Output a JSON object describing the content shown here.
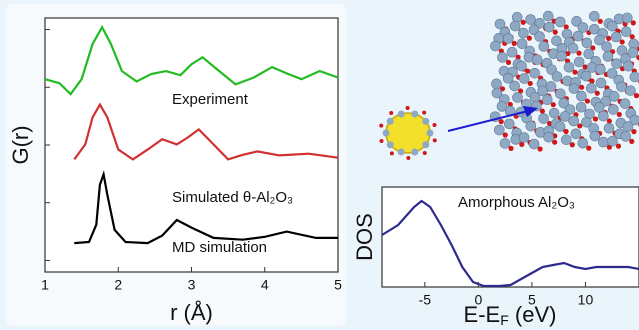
{
  "chart_data": [
    {
      "type": "line",
      "ylabel": "G(r)",
      "xlabel": "r (Å)",
      "xlim": [
        1,
        5
      ],
      "xticks": [
        1,
        2,
        3,
        4,
        5
      ],
      "ylim": [
        -0.2,
        4.2
      ],
      "yticks": [
        0,
        1,
        2,
        3,
        4
      ],
      "ytick_labels": false,
      "series": [
        {
          "name": "Experiment",
          "color": "#22bb22",
          "x": [
            1.0,
            1.2,
            1.35,
            1.5,
            1.65,
            1.78,
            1.9,
            2.05,
            2.25,
            2.45,
            2.65,
            2.85,
            3.0,
            3.15,
            3.35,
            3.6,
            3.85,
            4.1,
            4.3,
            4.5,
            4.75,
            5.0
          ],
          "values": [
            3.14,
            3.07,
            2.88,
            3.14,
            3.75,
            4.04,
            3.75,
            3.28,
            3.1,
            3.23,
            3.28,
            3.21,
            3.4,
            3.52,
            3.31,
            3.05,
            3.17,
            3.35,
            3.24,
            3.14,
            3.28,
            3.17
          ]
        },
        {
          "name": "Simulated θ-Al₂O₃",
          "color": "#d03030",
          "x": [
            1.4,
            1.55,
            1.65,
            1.75,
            1.85,
            2.0,
            2.2,
            2.4,
            2.6,
            2.8,
            2.95,
            3.1,
            3.3,
            3.5,
            3.7,
            3.9,
            4.2,
            4.6,
            5.0
          ],
          "values": [
            1.75,
            2.01,
            2.48,
            2.7,
            2.48,
            1.92,
            1.75,
            1.92,
            2.1,
            2.01,
            2.13,
            2.27,
            2.01,
            1.75,
            1.83,
            1.89,
            1.82,
            1.85,
            1.78
          ]
        },
        {
          "name": "MD simulation",
          "color": "#000000",
          "x": [
            1.4,
            1.6,
            1.7,
            1.75,
            1.8,
            1.85,
            1.95,
            2.1,
            2.4,
            2.6,
            2.8,
            3.0,
            3.3,
            3.7,
            4.0,
            4.3,
            4.7,
            5.0
          ],
          "values": [
            0.3,
            0.32,
            0.62,
            1.31,
            1.49,
            1.14,
            0.53,
            0.32,
            0.3,
            0.43,
            0.7,
            0.57,
            0.39,
            0.36,
            0.41,
            0.5,
            0.39,
            0.39
          ]
        }
      ]
    },
    {
      "type": "line",
      "title": "Amorphous Al₂O₃",
      "ylabel": "DOS",
      "xlabel": [
        "E-E",
        "F",
        " (eV)"
      ],
      "xlim": [
        -9,
        15
      ],
      "xticks": [
        -5,
        0,
        5,
        10
      ],
      "ylim": [
        0,
        1
      ],
      "series": [
        {
          "color": "#2c2a8c",
          "x": [
            -9,
            -7.5,
            -6,
            -5.3,
            -4.5,
            -3.5,
            -2.5,
            -1.5,
            -0.5,
            0.5,
            2,
            3,
            4,
            5,
            6,
            7,
            8,
            9,
            10,
            11,
            12,
            13,
            14,
            15
          ],
          "values": [
            0.52,
            0.62,
            0.8,
            0.86,
            0.8,
            0.62,
            0.42,
            0.2,
            0.05,
            0.01,
            0.01,
            0.02,
            0.08,
            0.14,
            0.2,
            0.22,
            0.24,
            0.2,
            0.18,
            0.2,
            0.2,
            0.2,
            0.2,
            0.18
          ]
        }
      ]
    }
  ]
}
